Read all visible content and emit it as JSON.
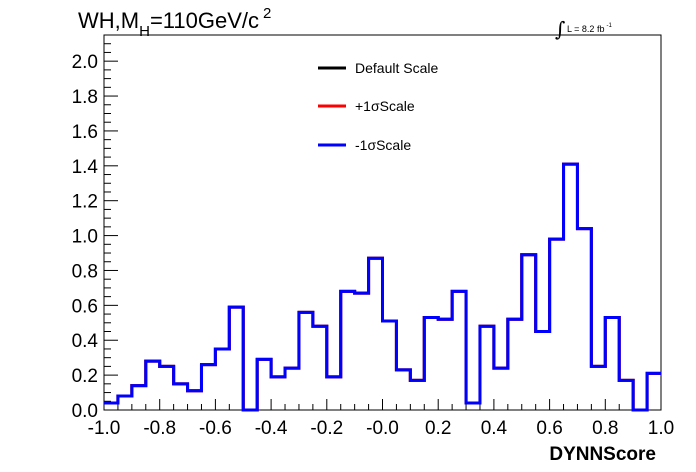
{
  "chart_data": {
    "type": "line",
    "title": {
      "main": "WH,M",
      "sub": "H",
      "rest": "=110GeV/c",
      "sup": "2"
    },
    "luminosity": {
      "symbol": "∫",
      "text": "L = 8.2 fb",
      "sup": "-1"
    },
    "xlabel": "DYNNScore",
    "ylabel": "",
    "xlim": [
      -1.0,
      1.0
    ],
    "ylim": [
      0.0,
      2.15
    ],
    "x_ticks": [
      "-1.0",
      "-0.8",
      "-0.6",
      "-0.4",
      "-0.2",
      "-0.0",
      "0.2",
      "0.4",
      "0.6",
      "0.8",
      "1.0"
    ],
    "y_ticks": [
      "0.0",
      "0.2",
      "0.4",
      "0.6",
      "0.8",
      "1.0",
      "1.2",
      "1.4",
      "1.6",
      "1.8",
      "2.0"
    ],
    "legend_position": "top-center",
    "bin_edges_start": -1.0,
    "bin_width": 0.05,
    "series": [
      {
        "name": "Default Scale",
        "color": "#000000",
        "values": [
          0.04,
          0.08,
          0.14,
          0.28,
          0.25,
          0.15,
          0.11,
          0.26,
          0.35,
          0.59,
          0.0,
          0.29,
          0.19,
          0.24,
          0.56,
          0.48,
          0.19,
          0.68,
          0.67,
          0.87,
          0.51,
          0.23,
          0.17,
          0.53,
          0.52,
          0.68,
          0.04,
          0.48,
          0.24,
          0.52,
          0.89,
          0.45,
          0.98,
          1.41,
          1.04,
          0.25,
          0.53,
          0.17,
          0.0,
          0.21
        ]
      },
      {
        "name": "+1σScale",
        "color": "#ff0000",
        "values": [
          0.04,
          0.08,
          0.14,
          0.28,
          0.25,
          0.15,
          0.11,
          0.26,
          0.35,
          0.59,
          0.0,
          0.29,
          0.19,
          0.24,
          0.56,
          0.48,
          0.19,
          0.68,
          0.67,
          0.87,
          0.51,
          0.23,
          0.17,
          0.53,
          0.52,
          0.68,
          0.04,
          0.48,
          0.24,
          0.52,
          0.89,
          0.45,
          0.98,
          1.41,
          1.04,
          0.25,
          0.53,
          0.17,
          0.0,
          0.21
        ]
      },
      {
        "name": "-1σScale",
        "color": "#0000ff",
        "values": [
          0.04,
          0.08,
          0.14,
          0.28,
          0.25,
          0.15,
          0.11,
          0.26,
          0.35,
          0.59,
          0.0,
          0.29,
          0.19,
          0.24,
          0.56,
          0.48,
          0.19,
          0.68,
          0.67,
          0.87,
          0.51,
          0.23,
          0.17,
          0.53,
          0.52,
          0.68,
          0.04,
          0.48,
          0.24,
          0.52,
          0.89,
          0.45,
          0.98,
          1.41,
          1.04,
          0.25,
          0.53,
          0.17,
          0.0,
          0.21
        ]
      }
    ]
  }
}
